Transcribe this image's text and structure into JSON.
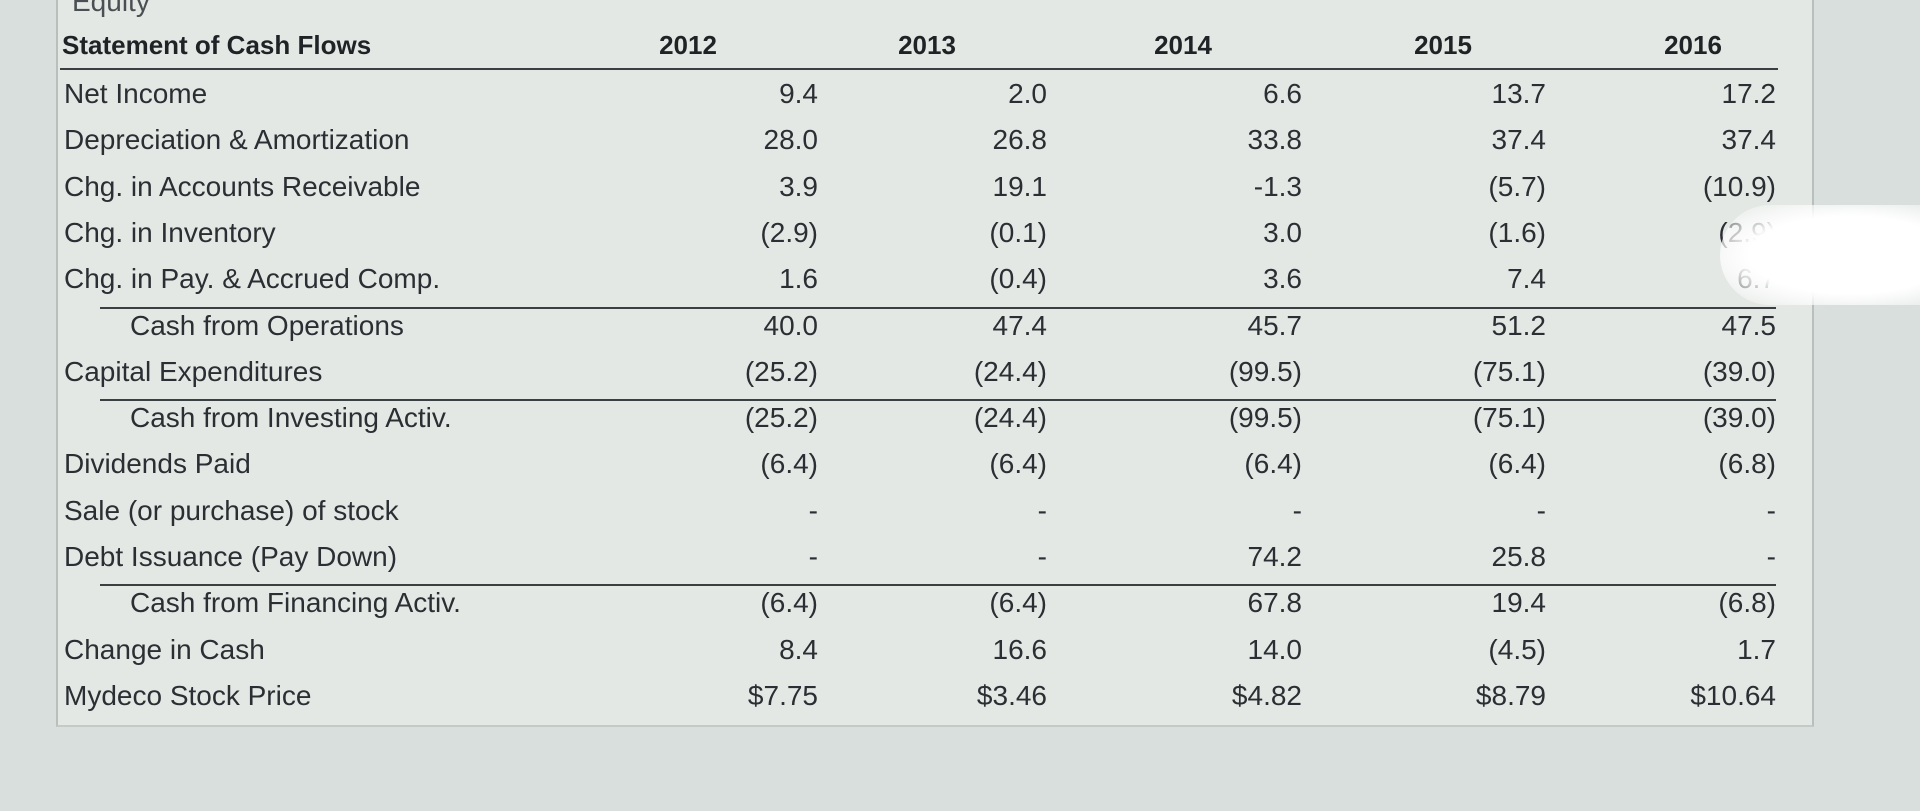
{
  "section_label": "Equity",
  "table": {
    "title": "Statement of Cash Flows",
    "years": [
      "2012",
      "2013",
      "2014",
      "2015",
      "2016"
    ],
    "rows": [
      {
        "label": "Net Income",
        "indent": false,
        "rule_above": false,
        "values": [
          "9.4",
          "2.0",
          "6.6",
          "13.7",
          "17.2"
        ]
      },
      {
        "label": "Depreciation & Amortization",
        "indent": false,
        "rule_above": false,
        "values": [
          "28.0",
          "26.8",
          "33.8",
          "37.4",
          "37.4"
        ]
      },
      {
        "label": "Chg. in Accounts Receivable",
        "indent": false,
        "rule_above": false,
        "values": [
          "3.9",
          "19.1",
          "-1.3",
          "(5.7)",
          "(10.9)"
        ]
      },
      {
        "label": "Chg. in Inventory",
        "indent": false,
        "rule_above": false,
        "values": [
          "(2.9)",
          "(0.1)",
          "3.0",
          "(1.6)",
          "(2.9)"
        ]
      },
      {
        "label": "Chg. in Pay. & Accrued Comp.",
        "indent": false,
        "rule_above": false,
        "values": [
          "1.6",
          "(0.4)",
          "3.6",
          "7.4",
          "6.7"
        ]
      },
      {
        "label": "Cash from Operations",
        "indent": true,
        "rule_above": true,
        "values": [
          "40.0",
          "47.4",
          "45.7",
          "51.2",
          "47.5"
        ]
      },
      {
        "label": "Capital Expenditures",
        "indent": false,
        "rule_above": false,
        "values": [
          "(25.2)",
          "(24.4)",
          "(99.5)",
          "(75.1)",
          "(39.0)"
        ]
      },
      {
        "label": "Cash from Investing Activ.",
        "indent": true,
        "rule_above": true,
        "values": [
          "(25.2)",
          "(24.4)",
          "(99.5)",
          "(75.1)",
          "(39.0)"
        ]
      },
      {
        "label": "Dividends Paid",
        "indent": false,
        "rule_above": false,
        "values": [
          "(6.4)",
          "(6.4)",
          "(6.4)",
          "(6.4)",
          "(6.8)"
        ]
      },
      {
        "label": "Sale (or purchase) of stock",
        "indent": false,
        "rule_above": false,
        "values": [
          "-",
          "-",
          "-",
          "-",
          "-"
        ]
      },
      {
        "label": "Debt Issuance (Pay Down)",
        "indent": false,
        "rule_above": false,
        "values": [
          "-",
          "-",
          "74.2",
          "25.8",
          "-"
        ]
      },
      {
        "label": "Cash from Financing Activ.",
        "indent": true,
        "rule_above": true,
        "values": [
          "(6.4)",
          "(6.4)",
          "67.8",
          "19.4",
          "(6.8)"
        ]
      },
      {
        "label": "Change in Cash",
        "indent": false,
        "rule_above": false,
        "values": [
          "8.4",
          "16.6",
          "14.0",
          "(4.5)",
          "1.7"
        ]
      },
      {
        "label": "Mydeco Stock Price",
        "indent": false,
        "rule_above": false,
        "values": [
          "$7.75",
          "$3.46",
          "$4.82",
          "$8.79",
          "$10.64"
        ]
      }
    ]
  }
}
